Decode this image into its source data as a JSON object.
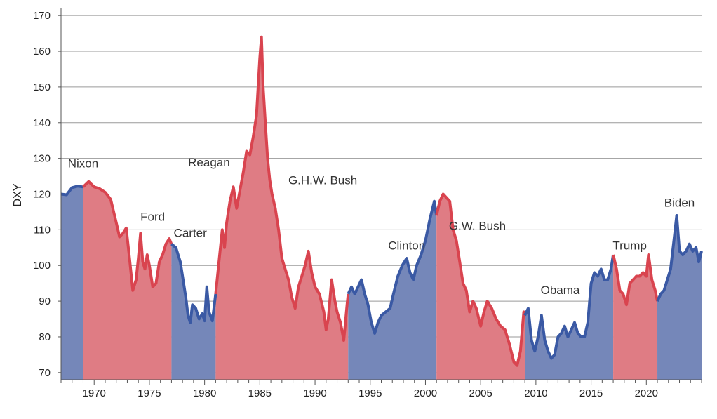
{
  "chart_data": {
    "type": "area",
    "title": "",
    "xlabel": "",
    "ylabel": "DXY",
    "xlim": [
      1967,
      2025
    ],
    "ylim": [
      68,
      172
    ],
    "grid": "horizontal",
    "y_ticks": [
      70,
      80,
      90,
      100,
      110,
      120,
      130,
      140,
      150,
      160,
      170
    ],
    "x_ticks": [
      1970,
      1975,
      1980,
      1985,
      1990,
      1995,
      2000,
      2005,
      2010,
      2015,
      2020
    ],
    "colors": {
      "republican": "#d9444f",
      "democrat": "#3a59a4",
      "republican_fill": "#df7c84",
      "democrat_fill": "#7587b9"
    },
    "presidencies": [
      {
        "name": "Nixon",
        "party": "democrat",
        "start": 1967.0,
        "end": 1969.0,
        "label_x": 1969.0,
        "label_y": 127.5
      },
      {
        "name": "Ford",
        "party": "republican",
        "start": 1969.0,
        "end": 1977.0,
        "label_x": 1975.3,
        "label_y": 112.5
      },
      {
        "name": "Carter",
        "party": "democrat",
        "start": 1977.0,
        "end": 1981.0,
        "label_x": 1978.7,
        "label_y": 108.0
      },
      {
        "name": "Reagan",
        "party": "republican",
        "start": 1981.0,
        "end": 1993.0,
        "label_x": 1980.4,
        "label_y": 127.8
      },
      {
        "name": "G.H.W. Bush",
        "party": "republican",
        "start": 1993.0,
        "end": 1993.0,
        "label_x": 1990.7,
        "label_y": 122.8
      },
      {
        "name": "Clinton",
        "party": "democrat",
        "start": 1993.0,
        "end": 2001.0,
        "label_x": 1998.3,
        "label_y": 104.5
      },
      {
        "name": "G.W. Bush",
        "party": "republican",
        "start": 2001.0,
        "end": 2009.0,
        "label_x": 2004.7,
        "label_y": 110.0
      },
      {
        "name": "Obama",
        "party": "democrat",
        "start": 2009.0,
        "end": 2017.0,
        "label_x": 2012.2,
        "label_y": 92.0
      },
      {
        "name": "Trump",
        "party": "republican",
        "start": 2017.0,
        "end": 2021.0,
        "label_x": 2018.5,
        "label_y": 104.5
      },
      {
        "name": "Biden",
        "party": "democrat",
        "start": 2021.0,
        "end": 2025.0,
        "label_x": 2023.0,
        "label_y": 116.5
      }
    ],
    "series": [
      {
        "values": [
          [
            1967.0,
            120.0
          ],
          [
            1967.5,
            119.8
          ],
          [
            1968.0,
            121.8
          ],
          [
            1968.5,
            122.2
          ],
          [
            1969.0,
            122.0
          ],
          [
            1969.5,
            123.5
          ],
          [
            1970.0,
            122.0
          ],
          [
            1970.5,
            121.5
          ],
          [
            1971.0,
            120.5
          ],
          [
            1971.5,
            118.5
          ],
          [
            1972.0,
            112.0
          ],
          [
            1972.3,
            108.0
          ],
          [
            1972.6,
            109.0
          ],
          [
            1972.9,
            110.5
          ],
          [
            1973.2,
            102.0
          ],
          [
            1973.5,
            93.0
          ],
          [
            1973.8,
            96.0
          ],
          [
            1974.0,
            102.0
          ],
          [
            1974.2,
            109.0
          ],
          [
            1974.4,
            101.0
          ],
          [
            1974.6,
            99.0
          ],
          [
            1974.8,
            103.0
          ],
          [
            1975.0,
            100.0
          ],
          [
            1975.3,
            94.0
          ],
          [
            1975.6,
            95.0
          ],
          [
            1975.9,
            101.0
          ],
          [
            1976.2,
            103.0
          ],
          [
            1976.5,
            106.0
          ],
          [
            1976.8,
            107.5
          ],
          [
            1977.0,
            106.0
          ],
          [
            1977.4,
            105.0
          ],
          [
            1977.8,
            101.0
          ],
          [
            1978.0,
            97.0
          ],
          [
            1978.3,
            91.0
          ],
          [
            1978.5,
            86.0
          ],
          [
            1978.7,
            84.0
          ],
          [
            1978.9,
            89.0
          ],
          [
            1979.2,
            88.0
          ],
          [
            1979.5,
            85.0
          ],
          [
            1979.8,
            86.5
          ],
          [
            1980.0,
            84.5
          ],
          [
            1980.2,
            94.0
          ],
          [
            1980.4,
            87.0
          ],
          [
            1980.7,
            84.5
          ],
          [
            1981.0,
            92.0
          ],
          [
            1981.3,
            101.0
          ],
          [
            1981.6,
            110.0
          ],
          [
            1981.8,
            105.0
          ],
          [
            1982.0,
            112.0
          ],
          [
            1982.3,
            118.0
          ],
          [
            1982.6,
            122.0
          ],
          [
            1982.9,
            116.0
          ],
          [
            1983.2,
            121.0
          ],
          [
            1983.5,
            126.0
          ],
          [
            1983.8,
            132.0
          ],
          [
            1984.1,
            131.0
          ],
          [
            1984.4,
            136.0
          ],
          [
            1984.7,
            142.0
          ],
          [
            1985.0,
            158.0
          ],
          [
            1985.15,
            164.0
          ],
          [
            1985.3,
            150.0
          ],
          [
            1985.5,
            140.0
          ],
          [
            1985.7,
            130.0
          ],
          [
            1985.9,
            124.0
          ],
          [
            1986.1,
            120.0
          ],
          [
            1986.4,
            116.0
          ],
          [
            1986.7,
            110.0
          ],
          [
            1987.0,
            102.0
          ],
          [
            1987.3,
            99.0
          ],
          [
            1987.6,
            96.0
          ],
          [
            1987.9,
            91.0
          ],
          [
            1988.2,
            88.0
          ],
          [
            1988.5,
            94.0
          ],
          [
            1988.8,
            97.0
          ],
          [
            1989.1,
            100.0
          ],
          [
            1989.4,
            104.0
          ],
          [
            1989.7,
            98.0
          ],
          [
            1990.0,
            94.0
          ],
          [
            1990.4,
            92.0
          ],
          [
            1990.8,
            87.0
          ],
          [
            1991.0,
            82.0
          ],
          [
            1991.2,
            85.0
          ],
          [
            1991.5,
            96.0
          ],
          [
            1991.8,
            90.0
          ],
          [
            1992.0,
            87.0
          ],
          [
            1992.3,
            84.0
          ],
          [
            1992.6,
            79.0
          ],
          [
            1992.9,
            89.0
          ],
          [
            1993.0,
            92.0
          ],
          [
            1993.3,
            94.0
          ],
          [
            1993.6,
            92.0
          ],
          [
            1993.9,
            94.0
          ],
          [
            1994.2,
            96.0
          ],
          [
            1994.5,
            92.0
          ],
          [
            1994.8,
            89.0
          ],
          [
            1995.1,
            84.0
          ],
          [
            1995.4,
            81.0
          ],
          [
            1995.7,
            84.0
          ],
          [
            1996.0,
            86.0
          ],
          [
            1996.4,
            87.0
          ],
          [
            1996.8,
            88.0
          ],
          [
            1997.1,
            92.0
          ],
          [
            1997.5,
            97.0
          ],
          [
            1997.9,
            100.0
          ],
          [
            1998.3,
            102.0
          ],
          [
            1998.6,
            98.0
          ],
          [
            1998.9,
            96.0
          ],
          [
            1999.2,
            100.0
          ],
          [
            1999.6,
            103.0
          ],
          [
            2000.0,
            107.0
          ],
          [
            2000.4,
            113.0
          ],
          [
            2000.8,
            118.0
          ],
          [
            2001.0,
            114.0
          ],
          [
            2001.3,
            118.0
          ],
          [
            2001.6,
            120.0
          ],
          [
            2001.9,
            119.0
          ],
          [
            2002.2,
            118.0
          ],
          [
            2002.5,
            110.0
          ],
          [
            2002.8,
            107.0
          ],
          [
            2003.1,
            101.0
          ],
          [
            2003.4,
            95.0
          ],
          [
            2003.7,
            93.0
          ],
          [
            2004.0,
            87.0
          ],
          [
            2004.3,
            90.0
          ],
          [
            2004.6,
            88.0
          ],
          [
            2005.0,
            83.0
          ],
          [
            2005.3,
            87.0
          ],
          [
            2005.6,
            90.0
          ],
          [
            2006.0,
            88.0
          ],
          [
            2006.4,
            85.0
          ],
          [
            2006.8,
            83.0
          ],
          [
            2007.2,
            82.0
          ],
          [
            2007.6,
            78.0
          ],
          [
            2008.0,
            73.0
          ],
          [
            2008.3,
            72.0
          ],
          [
            2008.6,
            76.0
          ],
          [
            2008.9,
            87.0
          ],
          [
            2009.0,
            86.0
          ],
          [
            2009.3,
            88.0
          ],
          [
            2009.6,
            79.0
          ],
          [
            2009.9,
            76.0
          ],
          [
            2010.2,
            80.0
          ],
          [
            2010.5,
            86.0
          ],
          [
            2010.8,
            79.0
          ],
          [
            2011.1,
            76.0
          ],
          [
            2011.4,
            74.0
          ],
          [
            2011.7,
            75.0
          ],
          [
            2012.0,
            80.0
          ],
          [
            2012.3,
            81.0
          ],
          [
            2012.6,
            83.0
          ],
          [
            2012.9,
            80.0
          ],
          [
            2013.2,
            82.0
          ],
          [
            2013.5,
            84.0
          ],
          [
            2013.8,
            81.0
          ],
          [
            2014.1,
            80.0
          ],
          [
            2014.4,
            80.0
          ],
          [
            2014.7,
            84.0
          ],
          [
            2015.0,
            95.0
          ],
          [
            2015.3,
            98.0
          ],
          [
            2015.6,
            97.0
          ],
          [
            2015.9,
            99.0
          ],
          [
            2016.2,
            96.0
          ],
          [
            2016.5,
            96.0
          ],
          [
            2016.8,
            99.0
          ],
          [
            2017.0,
            103.0
          ],
          [
            2017.3,
            99.0
          ],
          [
            2017.6,
            93.0
          ],
          [
            2017.9,
            92.0
          ],
          [
            2018.2,
            89.0
          ],
          [
            2018.5,
            95.0
          ],
          [
            2018.8,
            96.0
          ],
          [
            2019.1,
            97.0
          ],
          [
            2019.4,
            97.0
          ],
          [
            2019.7,
            98.0
          ],
          [
            2020.0,
            97.0
          ],
          [
            2020.2,
            103.0
          ],
          [
            2020.5,
            96.0
          ],
          [
            2020.8,
            93.0
          ],
          [
            2021.0,
            90.0
          ],
          [
            2021.3,
            92.0
          ],
          [
            2021.6,
            93.0
          ],
          [
            2021.9,
            96.0
          ],
          [
            2022.2,
            99.0
          ],
          [
            2022.5,
            107.0
          ],
          [
            2022.75,
            114.0
          ],
          [
            2023.0,
            104.0
          ],
          [
            2023.3,
            103.0
          ],
          [
            2023.6,
            104.0
          ],
          [
            2023.9,
            106.0
          ],
          [
            2024.2,
            104.0
          ],
          [
            2024.5,
            105.0
          ],
          [
            2024.75,
            101.0
          ],
          [
            2025.0,
            104.0
          ]
        ]
      }
    ]
  }
}
